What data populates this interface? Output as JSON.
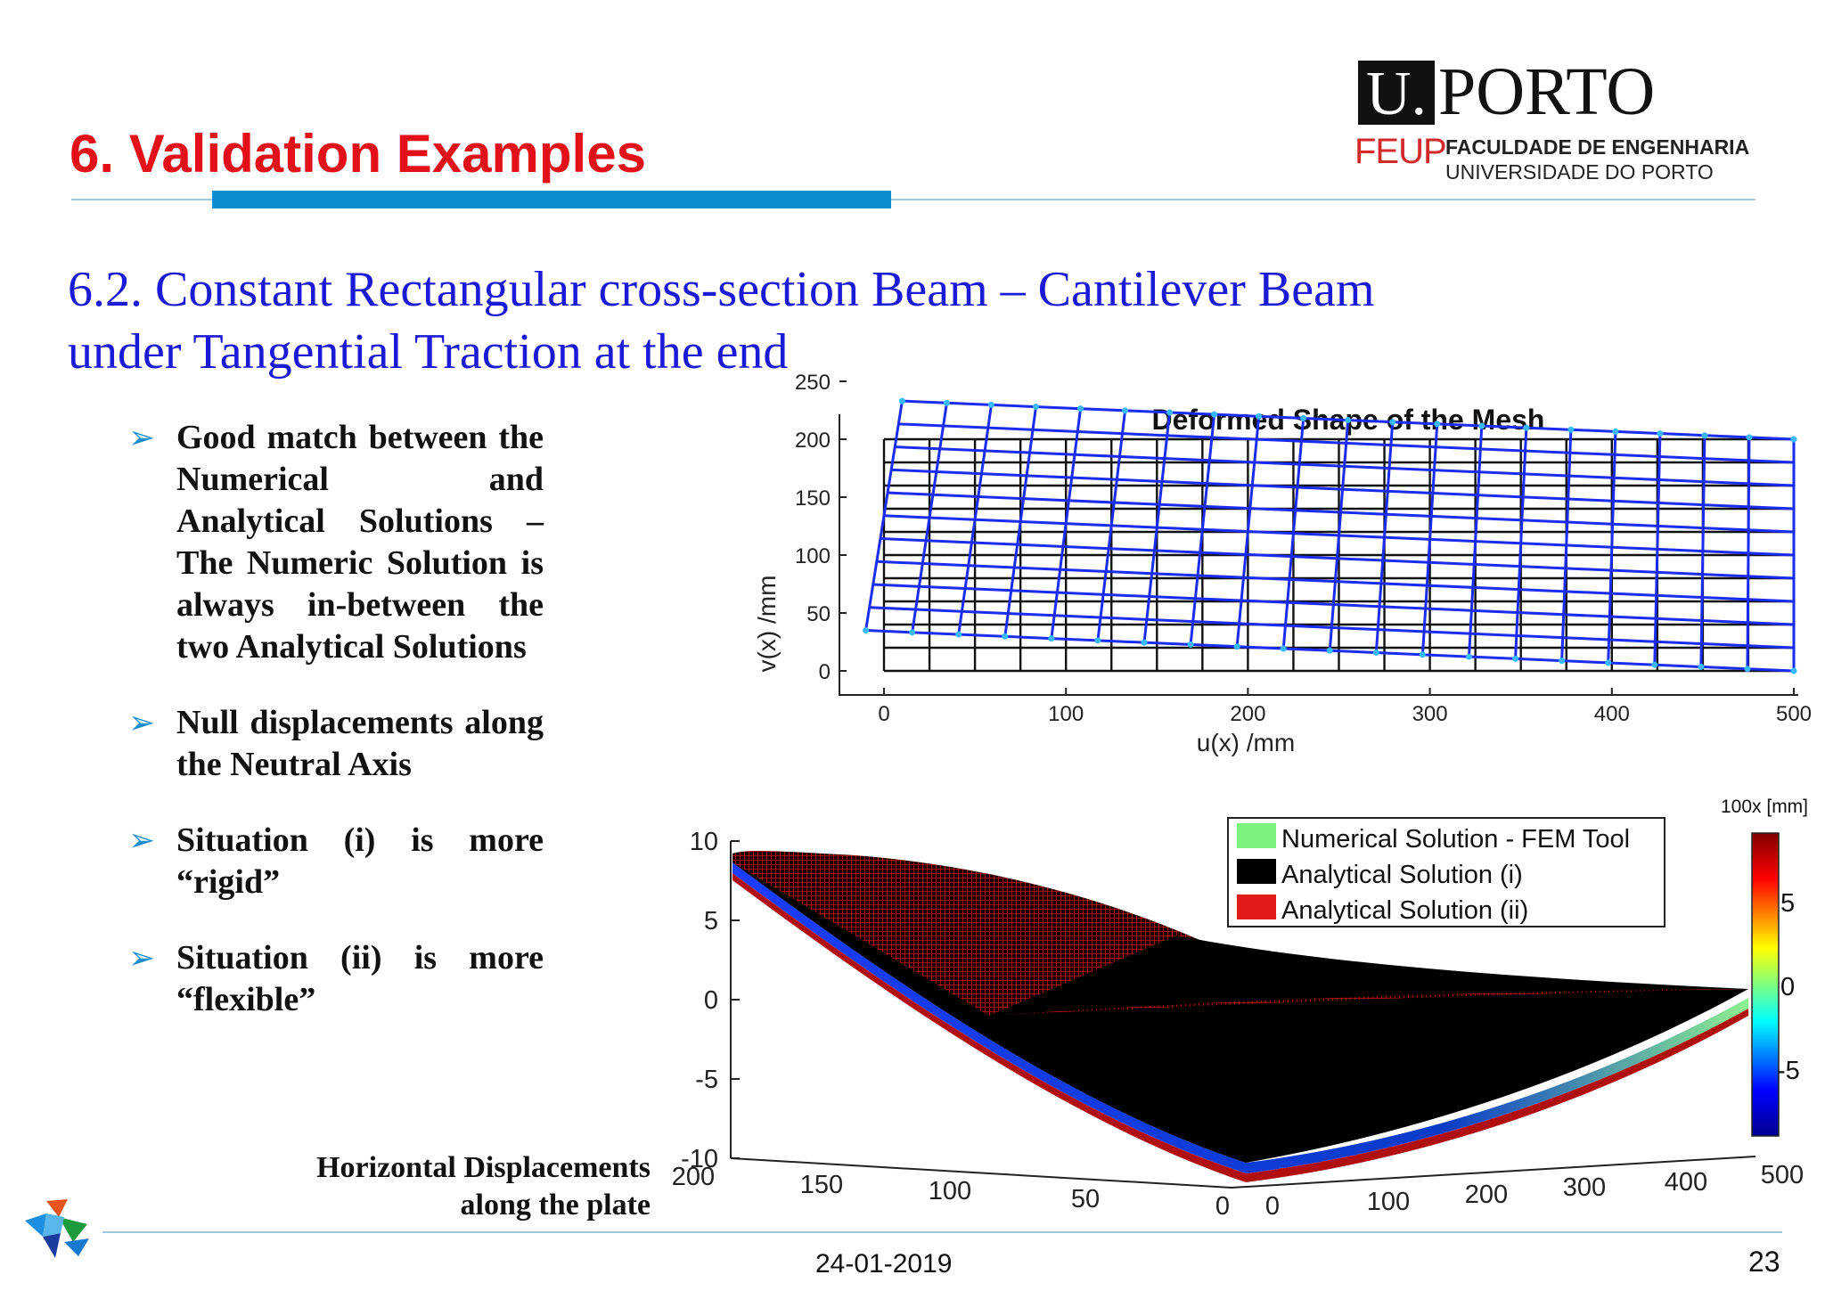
{
  "slide": {
    "title": "6. Validation Examples",
    "subtitle_line1": "6.2. Constant Rectangular cross-section Beam – Cantilever Beam",
    "subtitle_line2": "under Tangential Traction at the end",
    "date": "24-01-2019",
    "page_number": "23"
  },
  "logo": {
    "u": "U.",
    "porto": "PORTO",
    "feup": "FEUP",
    "faculty": "FACULDADE DE ENGENHARIA",
    "university": "UNIVERSIDADE DO PORTO"
  },
  "bullets": [
    "Good match between the Numerical and Analytical Solutions – The Numeric Solution is always in-between the two Analytical Solutions",
    "Null displacements along the Neutral Axis",
    "Situation (i) is more “rigid”",
    "Situation (ii) is more “flexible”"
  ],
  "caption_line1": "Horizontal Displacements",
  "caption_line2": "along the plate",
  "colors": {
    "title": "#e3101a",
    "subtitle": "#1a1ad8",
    "accent_bar": "#0a8fd2",
    "bullet_mark": "#1a8fd0"
  },
  "chart_data": [
    {
      "type": "scatter",
      "title": "Deformed Shape of the Mesh",
      "xlabel": "u(x) /mm",
      "ylabel": "v(x) /mm",
      "xlim": [
        -25,
        500
      ],
      "ylim": [
        -30,
        280
      ],
      "xticks": [
        0,
        100,
        200,
        300,
        400,
        500
      ],
      "yticks": [
        0,
        50,
        100,
        150,
        200,
        250
      ],
      "series": [
        {
          "color": "#000000",
          "description_free": true,
          "mesh": {
            "x": [
              0,
              500
            ],
            "y": [
              0,
              200
            ],
            "cols": 21,
            "rows": 11
          }
        },
        {
          "color": "#1a2cf0",
          "mesh": {
            "corners": [
              [
                -10,
                35
              ],
              [
                10,
                233
              ],
              [
                500,
                200
              ],
              [
                500,
                0
              ]
            ],
            "cols": 21,
            "rows": 11
          }
        }
      ]
    },
    {
      "type": "surface",
      "legend": [
        "Numerical Solution - FEM Tool",
        "Analytical Solution (i)",
        "Analytical Solution (ii)"
      ],
      "legend_colors": [
        "#7cf17c",
        "#000000",
        "#e31a1a"
      ],
      "zticks": [
        10,
        5,
        0,
        -5,
        -10
      ],
      "yticks": [
        200,
        150,
        100,
        50,
        0
      ],
      "xticks": [
        0,
        100,
        200,
        300,
        400,
        500
      ],
      "colorbar_label": "100x [mm]",
      "colorbar_ticks": [
        5,
        0,
        -5
      ]
    }
  ]
}
